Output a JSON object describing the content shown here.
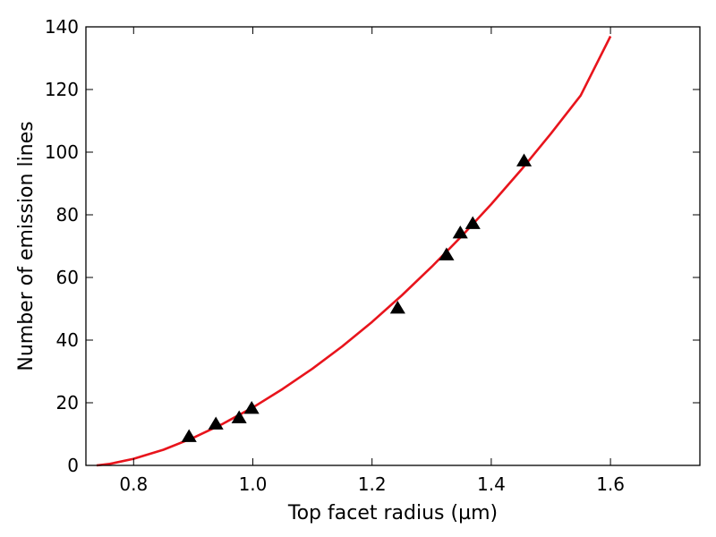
{
  "chart_data": {
    "type": "scatter",
    "title": "",
    "xlabel": "Top facet radius (µm)",
    "ylabel": "Number of emission lines",
    "xlim": [
      0.72,
      1.75
    ],
    "ylim": [
      0,
      140
    ],
    "xticks": [
      0.8,
      1.0,
      1.2,
      1.4,
      1.6
    ],
    "xtick_labels": [
      "0.8",
      "1.0",
      "1.2",
      "1.4",
      "1.6"
    ],
    "yticks": [
      0,
      20,
      40,
      60,
      80,
      100,
      120,
      140
    ],
    "ytick_labels": [
      "0",
      "20",
      "40",
      "60",
      "80",
      "100",
      "120",
      "140"
    ],
    "grid": false,
    "series": [
      {
        "kind": "scatter",
        "marker": "triangle",
        "color": "#000000",
        "x": [
          0.893,
          0.938,
          0.977,
          0.998,
          1.243,
          1.325,
          1.348,
          1.369,
          1.455
        ],
        "y": [
          9,
          13,
          15,
          18,
          50,
          67,
          74,
          77,
          97
        ]
      },
      {
        "kind": "line",
        "color": "#e8141c",
        "x": [
          0.738,
          0.76,
          0.8,
          0.85,
          0.9,
          0.95,
          1.0,
          1.05,
          1.1,
          1.15,
          1.2,
          1.25,
          1.3,
          1.35,
          1.4,
          1.45,
          1.5,
          1.55,
          1.6
        ],
        "y": [
          0,
          0.5,
          2.1,
          5.0,
          8.8,
          13.3,
          18.5,
          24.4,
          30.9,
          38.0,
          45.8,
          54.3,
          63.4,
          73.1,
          83.4,
          94.3,
          105.9,
          118.1,
          137
        ]
      }
    ]
  }
}
